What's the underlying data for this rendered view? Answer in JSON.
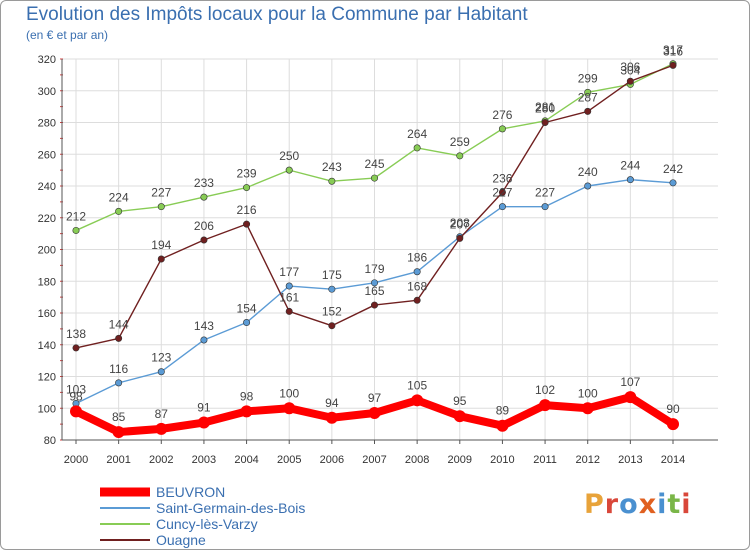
{
  "header": {
    "title": "Evolution des Impôts locaux pour la Commune par Habitant",
    "subtitle": "(en € et par an)"
  },
  "logo": {
    "letters": [
      "P",
      "r",
      "o",
      "x",
      "i",
      "t",
      "i"
    ],
    "colors": [
      "#e8a33a",
      "#d9473a",
      "#4a90d0",
      "#e06020",
      "#4a90d0",
      "#7ab648",
      "#d9473a"
    ]
  },
  "chart_data": {
    "type": "line",
    "x": [
      "2000",
      "2001",
      "2002",
      "2003",
      "2004",
      "2005",
      "2006",
      "2007",
      "2008",
      "2009",
      "2010",
      "2011",
      "2012",
      "2013",
      "2014"
    ],
    "ylim": [
      80,
      320
    ],
    "yticks": [
      80,
      100,
      120,
      140,
      160,
      180,
      200,
      220,
      240,
      260,
      280,
      300,
      320
    ],
    "grid": true,
    "legend_position": "bottom-left",
    "series": [
      {
        "name": "BEUVRON",
        "color": "#ff0000",
        "values": [
          98,
          85,
          87,
          91,
          98,
          100,
          94,
          97,
          105,
          95,
          89,
          102,
          100,
          107,
          90
        ]
      },
      {
        "name": "Saint-Germain-des-Bois",
        "color": "#5b9bd5",
        "values": [
          103,
          116,
          123,
          143,
          154,
          177,
          175,
          179,
          186,
          208,
          227,
          227,
          240,
          244,
          242
        ]
      },
      {
        "name": "Cuncy-lès-Varzy",
        "color": "#88cc55",
        "values": [
          212,
          224,
          227,
          233,
          239,
          250,
          243,
          245,
          264,
          259,
          276,
          281,
          299,
          304,
          317
        ]
      },
      {
        "name": "Ouagne",
        "color": "#702020",
        "values": [
          138,
          144,
          194,
          206,
          216,
          161,
          152,
          165,
          168,
          207,
          236,
          280,
          287,
          306,
          316
        ]
      }
    ]
  }
}
